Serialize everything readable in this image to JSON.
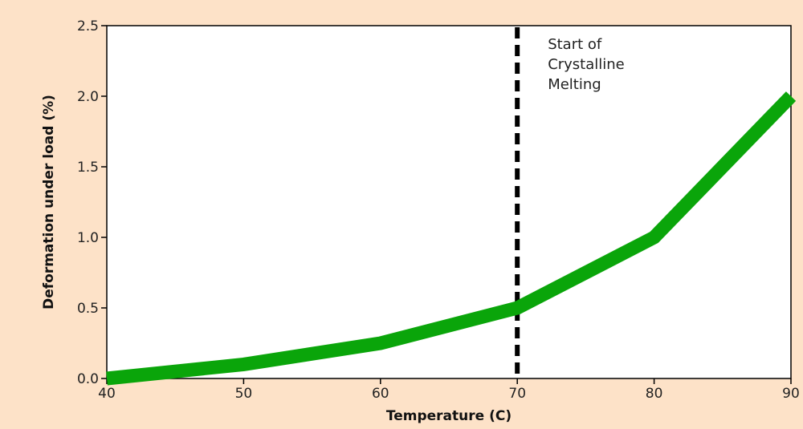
{
  "chart_data": {
    "type": "line",
    "xlabel": "Temperature (C)",
    "ylabel": "Deformation under load (%)",
    "xlim": [
      40,
      90
    ],
    "ylim": [
      0,
      2.5
    ],
    "x_ticks": [
      "40",
      "50",
      "60",
      "70",
      "80",
      "90"
    ],
    "y_ticks": [
      "0.0",
      "0.5",
      "1.0",
      "1.5",
      "2.0",
      "2.5"
    ],
    "grid": false,
    "series": [
      {
        "x": [
          40,
          50,
          60,
          70,
          80,
          90
        ],
        "y": [
          0.0,
          0.1,
          0.25,
          0.5,
          1.0,
          2.0
        ],
        "color": "#0aa50a"
      }
    ],
    "reference_line": {
      "x": 70,
      "style": "dashed",
      "color": "#000000",
      "label_lines": [
        "Start of",
        "Crystalline",
        "Melting"
      ]
    }
  }
}
